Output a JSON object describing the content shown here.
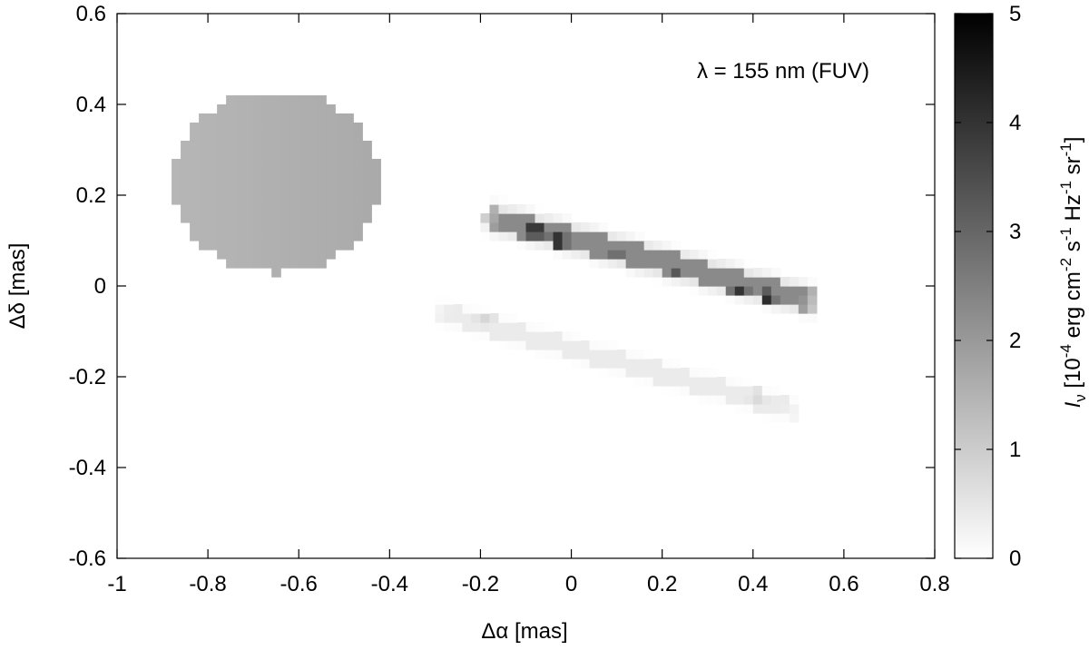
{
  "chart_data": {
    "type": "heatmap",
    "annotation": "λ = 155 nm (FUV)",
    "xlabel": "Δα [mas]",
    "ylabel": "Δδ [mas]",
    "xlim": [
      -1,
      0.8
    ],
    "ylim": [
      -0.6,
      0.6
    ],
    "x_ticks": [
      -1,
      -0.8,
      -0.6,
      -0.4,
      -0.2,
      0,
      0.2,
      0.4,
      0.6,
      0.8
    ],
    "x_tick_labels": [
      "-1",
      "-0.8",
      "-0.6",
      "-0.4",
      "-0.2",
      "0",
      "0.2",
      "0.4",
      "0.6",
      "0.8"
    ],
    "y_ticks": [
      -0.6,
      -0.4,
      -0.2,
      0,
      0.2,
      0.4,
      0.6
    ],
    "y_tick_labels": [
      "-0.6",
      "-0.4",
      "-0.2",
      "0",
      "0.2",
      "0.4",
      "0.6"
    ],
    "colorbar": {
      "range": [
        0,
        5
      ],
      "ticks": [
        0,
        1,
        2,
        3,
        4,
        5
      ],
      "tick_labels": [
        "0",
        "1",
        "2",
        "3",
        "4",
        "5"
      ],
      "label": {
        "symbol": "I",
        "subscript": "ν",
        "text_1": " [10",
        "exp_1": "-4",
        "text_2": " erg cm",
        "exp_2": "-2",
        "text_3": " s",
        "exp_3": "-1",
        "text_4": " Hz",
        "exp_4": "-1",
        "text_5": " sr",
        "exp_5": "-1",
        "text_6": "]"
      },
      "colormap": "white-to-black (grayscale)"
    },
    "features": [
      {
        "name": "star",
        "shape": "ellipse",
        "center": [
          -0.65,
          0.23
        ],
        "radii": [
          0.23,
          0.2
        ],
        "intensity": 1.55
      },
      {
        "name": "upper disk band",
        "shape": "band",
        "from": [
          -0.17,
          0.15
        ],
        "to": [
          0.52,
          -0.03
        ],
        "half_width": 0.024,
        "intensity": 2.3,
        "bright_spots": [
          {
            "x": -0.08,
            "y": 0.125,
            "intensity": 5
          },
          {
            "x": -0.03,
            "y": 0.1,
            "intensity": 5
          },
          {
            "x": 0.37,
            "y": -0.02,
            "intensity": 5
          },
          {
            "x": 0.43,
            "y": -0.025,
            "intensity": 4.6
          },
          {
            "x": 0.1,
            "y": 0.065,
            "intensity": 3.6
          },
          {
            "x": 0.23,
            "y": 0.03,
            "intensity": 3.3
          }
        ]
      },
      {
        "name": "lower disk band",
        "shape": "band",
        "from": [
          -0.28,
          -0.06
        ],
        "to": [
          0.48,
          -0.27
        ],
        "half_width": 0.02,
        "intensity": 0.4,
        "bright_spots": [
          {
            "x": -0.19,
            "y": -0.065,
            "intensity": 0.9
          },
          {
            "x": 0.41,
            "y": -0.245,
            "intensity": 0.8
          }
        ]
      }
    ]
  }
}
